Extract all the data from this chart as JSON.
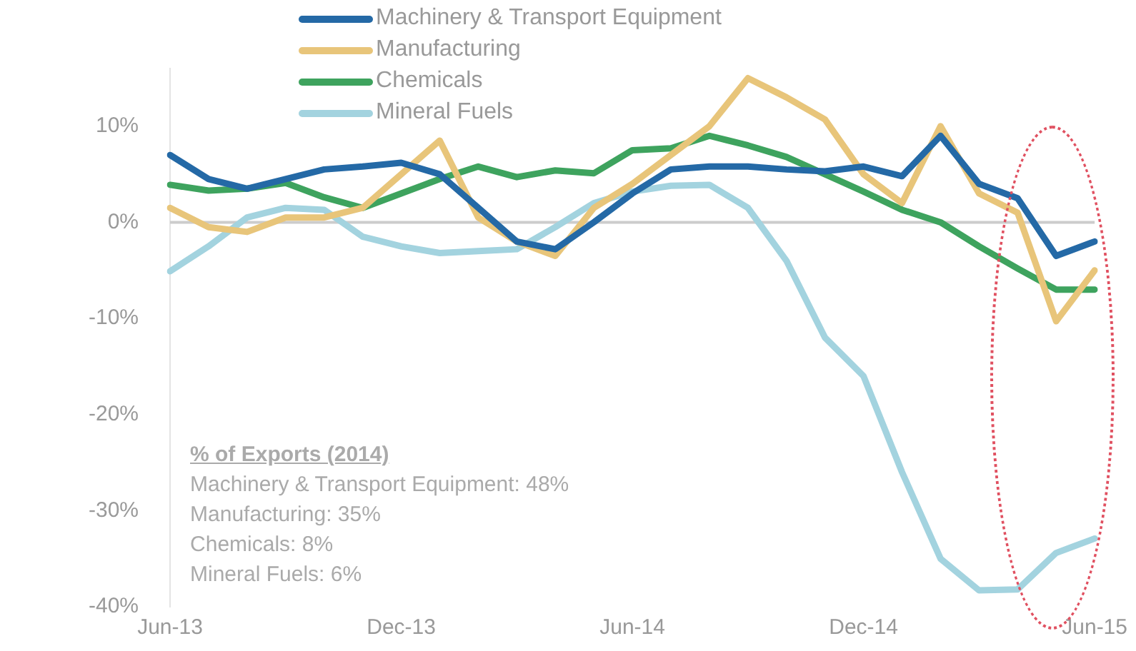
{
  "chart_data": {
    "type": "line",
    "categories": [
      "Jun-13",
      null,
      null,
      null,
      null,
      null,
      "Dec-13",
      null,
      null,
      null,
      null,
      null,
      "Jun-14",
      null,
      null,
      null,
      null,
      null,
      "Dec-14",
      null,
      null,
      null,
      null,
      null,
      "Jun-15"
    ],
    "series": [
      {
        "name": "Machinery & Transport Equipment",
        "color": "#2469a6",
        "values": [
          7,
          4.5,
          3.5,
          4.5,
          5.5,
          5.8,
          6.2,
          5,
          1.5,
          -2,
          -2.8,
          0,
          3,
          5.5,
          5.8,
          5.8,
          5.5,
          5.3,
          5.8,
          4.8,
          9,
          4,
          2.5,
          -3.5,
          -2
        ]
      },
      {
        "name": "Manufacturing",
        "color": "#e8c57a",
        "values": [
          1.5,
          -0.5,
          -1,
          0.5,
          0.5,
          1.5,
          5,
          8.5,
          0.5,
          -2,
          -3.5,
          1.5,
          4,
          7,
          10,
          15,
          13,
          10.7,
          5,
          2,
          10,
          3,
          1,
          -10.3,
          -5
        ]
      },
      {
        "name": "Chemicals",
        "color": "#3ea35e",
        "values": [
          3.9,
          3.3,
          3.5,
          4.1,
          2.6,
          1.5,
          3,
          4.5,
          5.8,
          4.7,
          5.4,
          5.1,
          7.5,
          7.7,
          9,
          8,
          6.8,
          5,
          3.2,
          1.3,
          0,
          -2.5,
          -4.8,
          -7,
          -7
        ]
      },
      {
        "name": "Mineral Fuels",
        "color": "#a3d3df",
        "values": [
          -5.1,
          -2.5,
          0.5,
          1.5,
          1.3,
          -1.5,
          -2.5,
          -3.2,
          -3,
          -2.8,
          -0.5,
          2,
          3.2,
          3.8,
          3.9,
          1.5,
          -4,
          -12,
          -16,
          -26,
          -35,
          -38.3,
          -38.2,
          -34.4,
          -32.9
        ]
      }
    ],
    "ylim": [
      -40,
      16
    ],
    "yticks": [
      {
        "value": -40,
        "label": "-40%"
      },
      {
        "value": -30,
        "label": "-30%"
      },
      {
        "value": -20,
        "label": "-20%"
      },
      {
        "value": -10,
        "label": "-10%"
      },
      {
        "value": 0,
        "label": "0%"
      },
      {
        "value": 10,
        "label": "10%"
      }
    ],
    "ref_lines": [
      {
        "axis": "y",
        "value": 0,
        "color": "#cccccc"
      }
    ],
    "grid": false,
    "legend": "top left",
    "marker": "none",
    "line_style": "solid",
    "annotations": [
      "% of Exports (2014)",
      "Machinery & Transport Equipment: 48%",
      "Manufacturing: 35%",
      "Chemicals: 8%",
      "Mineral Fuels: 6%"
    ]
  }
}
